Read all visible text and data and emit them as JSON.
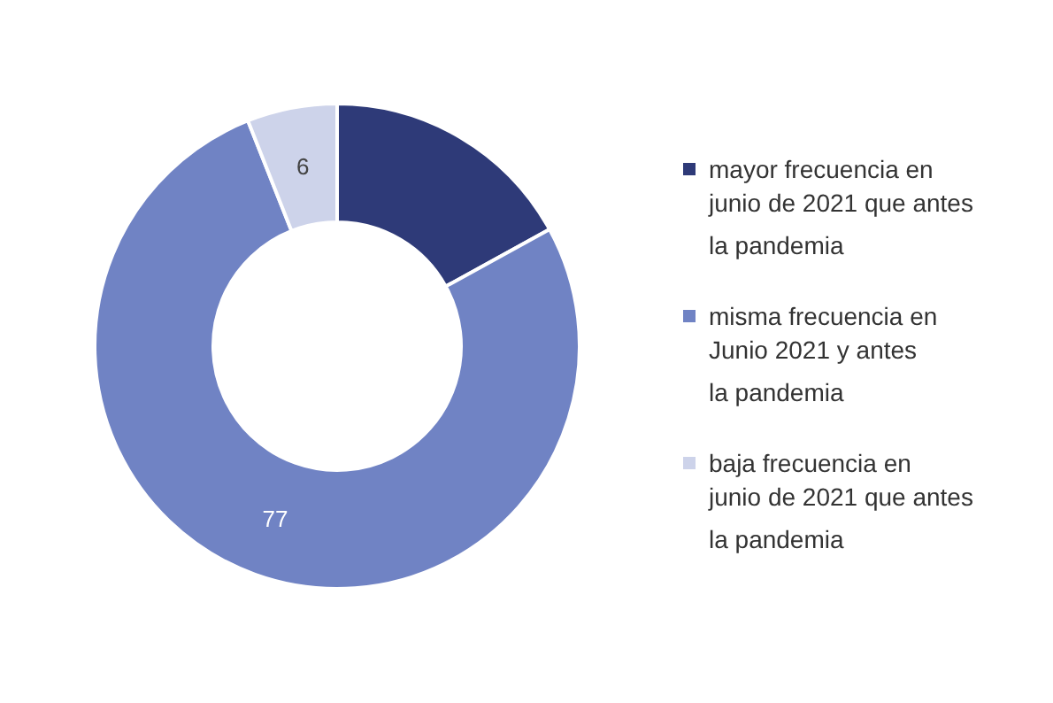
{
  "chart_data": {
    "type": "donut",
    "categories": [
      "mayor frecuencia en\njunio de 2021 que antes\nla pandemia",
      "misma frecuencia en\nJunio 2021 y antes\nla pandemia",
      "baja frecuencia en\njunio de 2021 que antes\nla pandemia"
    ],
    "values": [
      17,
      77,
      6
    ],
    "colors": [
      "#2e3a78",
      "#7083c4",
      "#cdd3ea"
    ],
    "value_labels": [
      null,
      "77",
      "6"
    ],
    "legend": "right"
  }
}
